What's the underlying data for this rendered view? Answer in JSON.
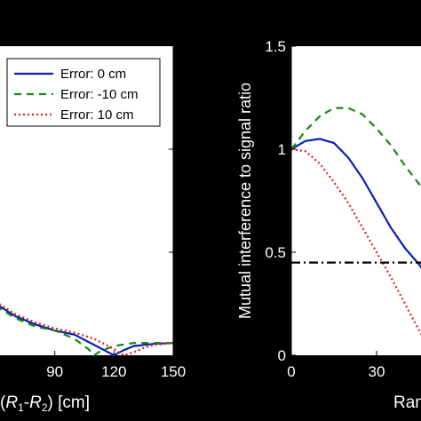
{
  "chart_data": [
    {
      "type": "line",
      "xlabel": "(R1-R2) [cm]",
      "xlabel_parts": {
        "open": "(",
        "r1": "R",
        "sub1": "1",
        "dash": "-",
        "r2": "R",
        "sub2": "2",
        "close": ") [cm]"
      },
      "ylabel": "",
      "xlim": [
        60,
        150
      ],
      "ylim": [
        0,
        1.5
      ],
      "x_ticks": [
        90,
        120,
        150
      ],
      "x_tick_labels": [
        "90",
        "120",
        "150"
      ],
      "grid": false,
      "legend_position": "top-right",
      "series": [
        {
          "name": "Error: 0 cm",
          "color": "#0a1fb5",
          "dash": "solid",
          "x": [
            60,
            70,
            80,
            90,
            100,
            110,
            115,
            120,
            125,
            130,
            140,
            150
          ],
          "y": [
            0.25,
            0.19,
            0.15,
            0.12,
            0.1,
            0.05,
            0.025,
            0.0,
            0.025,
            0.045,
            0.055,
            0.06
          ]
        },
        {
          "name": "Error: -10 cm",
          "color": "#138a13",
          "dash": "8,6",
          "x": [
            60,
            70,
            80,
            90,
            100,
            107,
            110,
            113,
            120,
            130,
            140,
            150
          ],
          "y": [
            0.24,
            0.18,
            0.14,
            0.12,
            0.08,
            0.03,
            0.0,
            0.02,
            0.045,
            0.06,
            0.06,
            0.06
          ]
        },
        {
          "name": "Error: 10 cm",
          "color": "#e0201c",
          "dash": "2,3",
          "x": [
            60,
            70,
            80,
            90,
            100,
            110,
            120,
            125,
            130,
            135,
            140,
            150
          ],
          "y": [
            0.26,
            0.2,
            0.16,
            0.13,
            0.11,
            0.08,
            0.03,
            0.0,
            0.015,
            0.035,
            0.05,
            0.06
          ]
        }
      ]
    },
    {
      "type": "line",
      "ylabel": "Mutual interference to signal ratio",
      "xlabel": "Range",
      "xlim": [
        0,
        50
      ],
      "ylim": [
        0,
        1.5
      ],
      "x_ticks": [
        0,
        30
      ],
      "x_tick_labels": [
        "0",
        "30"
      ],
      "y_ticks": [
        0,
        0.5,
        1,
        1.5
      ],
      "y_tick_labels": [
        "0",
        "0.5",
        "1",
        "1.5"
      ],
      "grid": false,
      "series": [
        {
          "color": "#0a1fb5",
          "dash": "solid",
          "x": [
            0,
            5,
            10,
            15,
            20,
            25,
            30,
            35,
            40,
            45,
            48
          ],
          "y": [
            1.0,
            1.04,
            1.05,
            1.03,
            0.96,
            0.86,
            0.74,
            0.62,
            0.52,
            0.44,
            0.38
          ]
        },
        {
          "color": "#138a13",
          "dash": "8,6",
          "x": [
            0,
            5,
            10,
            15,
            20,
            25,
            30,
            35,
            40,
            45,
            48
          ],
          "y": [
            1.0,
            1.09,
            1.16,
            1.2,
            1.2,
            1.17,
            1.1,
            1.02,
            0.92,
            0.83,
            0.76
          ]
        },
        {
          "color": "#e0201c",
          "dash": "2,3",
          "x": [
            0,
            5,
            10,
            15,
            20,
            25,
            30,
            35,
            40,
            45,
            48
          ],
          "y": [
            1.0,
            0.99,
            0.93,
            0.84,
            0.74,
            0.62,
            0.5,
            0.38,
            0.25,
            0.12,
            0.05
          ]
        },
        {
          "color": "#000000",
          "dash": "10,4,2,4",
          "x": [
            0,
            48
          ],
          "y": [
            0.45,
            0.45
          ]
        }
      ]
    }
  ]
}
